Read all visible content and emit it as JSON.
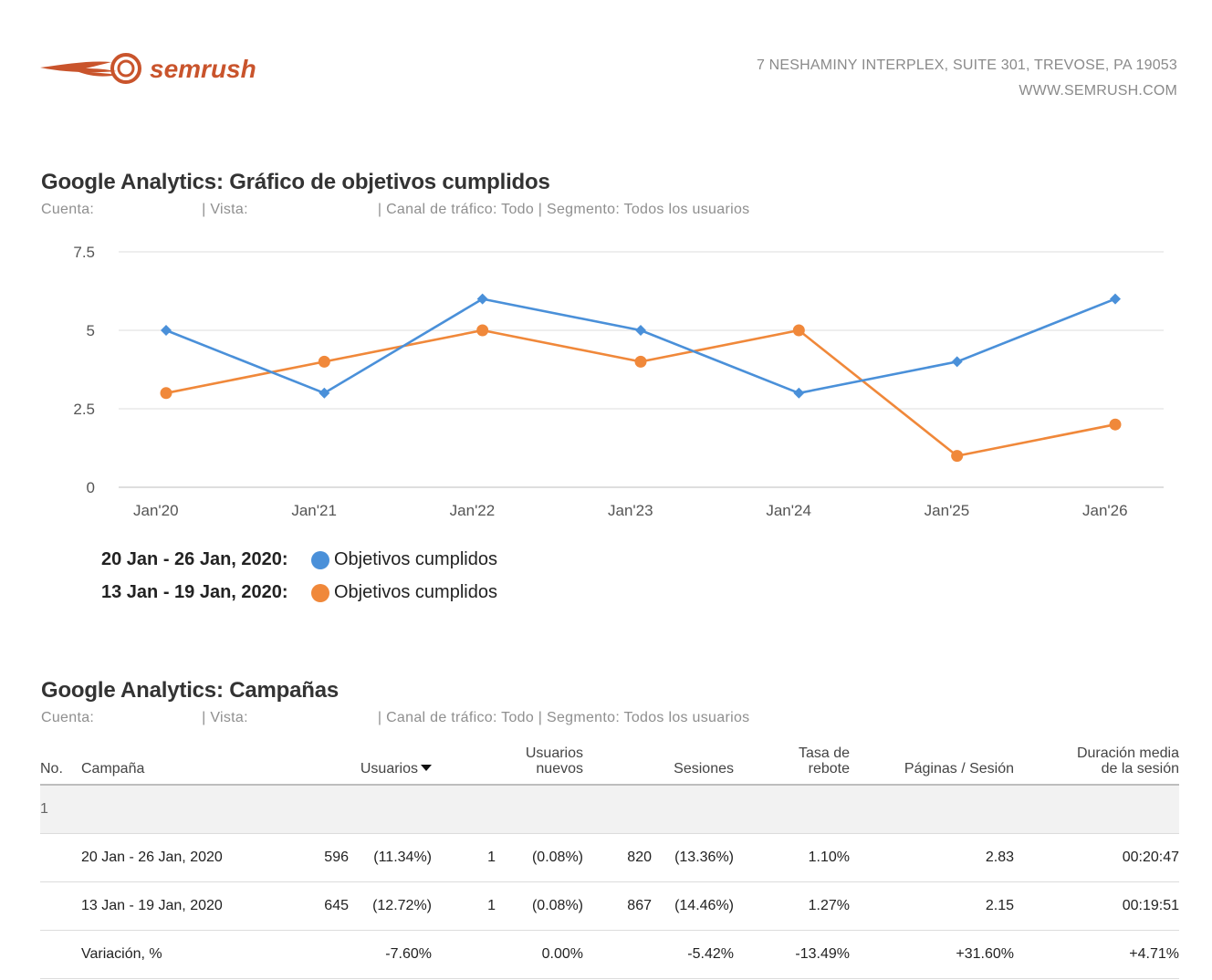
{
  "header": {
    "brand": "semrush",
    "brand_color": "#c9542c",
    "address_line1": "7 NESHAMINY INTERPLEX, SUITE 301, TREVOSE, PA 19053",
    "address_line2": "WWW.SEMRUSH.COM"
  },
  "goals_section": {
    "title": "Google Analytics: Gráfico de objetivos cumplidos",
    "meta_account_label": "Cuenta:",
    "meta_view_label": "| Vista:",
    "meta_rest": "| Canal de tráfico: Todo | Segmento: Todos los usuarios"
  },
  "chart_data": {
    "type": "line",
    "categories": [
      "Jan'20",
      "Jan'21",
      "Jan'22",
      "Jan'23",
      "Jan'24",
      "Jan'25",
      "Jan'26"
    ],
    "yticks": [
      "0",
      "2.5",
      "5",
      "7.5"
    ],
    "ylim": [
      0,
      7.5
    ],
    "grid": true,
    "series": [
      {
        "name": "Objetivos cumplidos",
        "period": "20 Jan - 26 Jan, 2020:",
        "color": "#4a90d9",
        "marker": "diamond",
        "values": [
          5,
          3,
          6,
          5,
          3,
          4,
          6
        ]
      },
      {
        "name": "Objetivos cumplidos",
        "period": "13 Jan - 19 Jan, 2020:",
        "color": "#f0883a",
        "marker": "circle",
        "values": [
          3,
          4,
          5,
          4,
          5,
          1,
          2
        ]
      }
    ]
  },
  "campaigns_section": {
    "title": "Google Analytics: Campañas",
    "meta_account_label": "Cuenta:",
    "meta_view_label": "| Vista:",
    "meta_rest": "| Canal de tráfico: Todo | Segmento: Todos los usuarios",
    "columns": {
      "no": "No.",
      "campaign": "Campaña",
      "users": "Usuarios",
      "new_users_1": "Usuarios",
      "new_users_2": "nuevos",
      "sessions": "Sesiones",
      "bounce_1": "Tasa de",
      "bounce_2": "rebote",
      "pages": "Páginas / Sesión",
      "duration_1": "Duración media",
      "duration_2": "de la sesión"
    },
    "group_no": "1",
    "rows": [
      {
        "label": "20 Jan - 26 Jan, 2020",
        "users": "596",
        "users_pct": "(11.34%)",
        "new_users": "1",
        "new_users_pct": "(0.08%)",
        "sessions": "820",
        "sessions_pct": "(13.36%)",
        "bounce": "1.10%",
        "pages": "2.83",
        "duration": "00:20:47"
      },
      {
        "label": "13 Jan - 19 Jan, 2020",
        "users": "645",
        "users_pct": "(12.72%)",
        "new_users": "1",
        "new_users_pct": "(0.08%)",
        "sessions": "867",
        "sessions_pct": "(14.46%)",
        "bounce": "1.27%",
        "pages": "2.15",
        "duration": "00:19:51"
      }
    ],
    "variation": {
      "label": "Variación, %",
      "users": "-7.60%",
      "new_users": "0.00%",
      "sessions": "-5.42%",
      "bounce": "-13.49%",
      "pages": "+31.60%",
      "duration": "+4.71%"
    }
  }
}
